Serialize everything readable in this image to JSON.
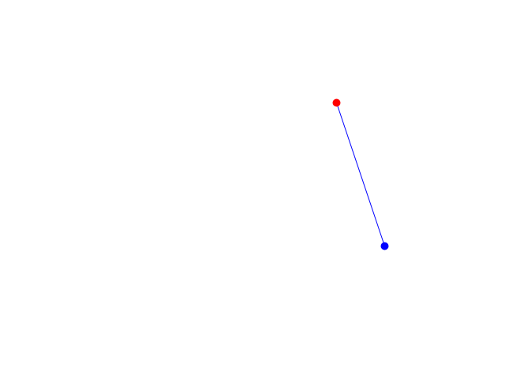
{
  "canvas": {
    "background_color": "#ffffff"
  },
  "elements": {
    "anchor_point_color": "#ff0000",
    "end_point_color": "#0000ff",
    "connector_color": "#0000ff"
  }
}
